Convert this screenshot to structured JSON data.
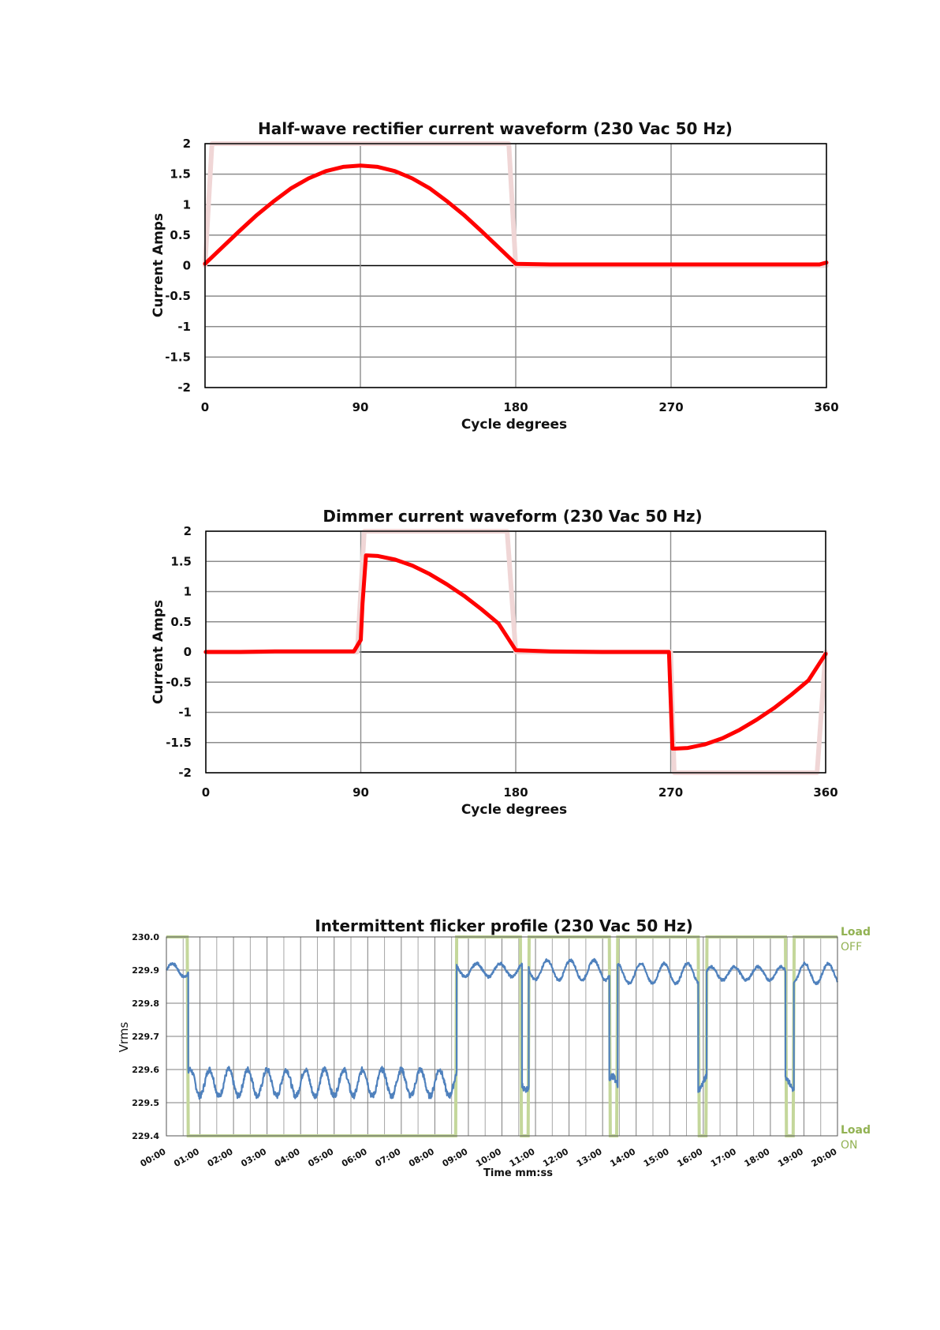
{
  "chart_data": [
    {
      "type": "line",
      "title": "Half-wave rectifier current waveform (230 Vac 50 Hz)",
      "xlabel": "Cycle degrees",
      "ylabel": "Current Amps",
      "xlim": [
        0,
        360
      ],
      "ylim": [
        -2,
        2
      ],
      "xticks": [
        "0",
        "90",
        "180",
        "270",
        "360"
      ],
      "yticks": [
        "2",
        "1.5",
        "1",
        "0.5",
        "0",
        "-0.5",
        "-1",
        "-1.5",
        "-2"
      ],
      "grid": true,
      "series": [
        {
          "color": "#ff0000",
          "x": [
            0,
            10,
            20,
            30,
            40,
            50,
            60,
            70,
            80,
            90,
            100,
            110,
            120,
            130,
            140,
            150,
            160,
            170,
            180,
            200,
            220,
            260,
            300,
            340,
            356,
            360
          ],
          "y": [
            0.03,
            0.3,
            0.57,
            0.83,
            1.06,
            1.27,
            1.43,
            1.55,
            1.62,
            1.64,
            1.62,
            1.55,
            1.43,
            1.27,
            1.06,
            0.83,
            0.57,
            0.3,
            0.03,
            0.02,
            0.02,
            0.02,
            0.02,
            0.02,
            0.02,
            0.05
          ]
        },
        {
          "color": "#f0d6d6",
          "x": [
            0,
            4,
            176,
            180,
            360
          ],
          "y": [
            0,
            2,
            2,
            0,
            0
          ]
        }
      ]
    },
    {
      "type": "line",
      "title": "Dimmer current waveform (230 Vac 50 Hz)",
      "xlabel": "Cycle degrees",
      "ylabel": "Current Amps",
      "xlim": [
        0,
        360
      ],
      "ylim": [
        -2,
        2
      ],
      "xticks": [
        "0",
        "90",
        "180",
        "270",
        "360"
      ],
      "yticks": [
        "2",
        "1.5",
        "1",
        "0.5",
        "0",
        "-0.5",
        "-1",
        "-1.5",
        "-2"
      ],
      "grid": true,
      "series": [
        {
          "color": "#ff0000",
          "x": [
            0,
            20,
            40,
            60,
            80,
            86,
            90,
            91,
            93,
            100,
            110,
            120,
            130,
            140,
            150,
            160,
            170,
            180,
            200,
            230,
            260,
            269,
            270,
            271,
            273,
            280,
            290,
            300,
            310,
            320,
            330,
            340,
            350,
            360
          ],
          "y": [
            0,
            0,
            0.01,
            0.01,
            0.01,
            0.01,
            0.2,
            0.8,
            1.6,
            1.59,
            1.53,
            1.43,
            1.29,
            1.12,
            0.93,
            0.71,
            0.47,
            0.03,
            0.01,
            0,
            0,
            0,
            -0.8,
            -1.6,
            -1.6,
            -1.59,
            -1.53,
            -1.43,
            -1.29,
            -1.12,
            -0.93,
            -0.71,
            -0.47,
            -0.03
          ]
        },
        {
          "color": "#f0d6d6",
          "x": [
            0,
            88,
            92,
            175,
            180,
            270,
            272,
            355,
            360
          ],
          "y": [
            0,
            0,
            2,
            2,
            0,
            0,
            -2,
            -2,
            0
          ]
        }
      ]
    },
    {
      "type": "line",
      "title": "Intermittent flicker profile (230 Vac 50 Hz)",
      "xlabel": "Time mm:ss",
      "ylabel": "Vrms",
      "xlim": [
        0,
        20
      ],
      "ylim": [
        229.4,
        230.0
      ],
      "xticks": [
        "00:00",
        "01:00",
        "02:00",
        "03:00",
        "04:00",
        "05:00",
        "06:00",
        "07:00",
        "08:00",
        "09:00",
        "10:00",
        "11:00",
        "12:00",
        "13:00",
        "14:00",
        "15:00",
        "16:00",
        "17:00",
        "18:00",
        "19:00",
        "20:00"
      ],
      "yticks": [
        "230.0",
        "229.9",
        "229.8",
        "229.7",
        "229.6",
        "229.5",
        "229.4"
      ],
      "grid": true,
      "secondary_labels": {
        "top": [
          "Load",
          "OFF"
        ],
        "bottom": [
          "Load",
          "ON"
        ]
      },
      "series": [
        {
          "color": "#4f81bd",
          "description_points": "Vrms trace",
          "segments": [
            {
              "from": 0.0,
              "to": 0.65,
              "level": 229.9,
              "amp": 0.02
            },
            {
              "from": 0.65,
              "to": 8.65,
              "level": 229.56,
              "amp": 0.04
            },
            {
              "from": 8.65,
              "to": 10.6,
              "level": 229.9,
              "amp": 0.02
            },
            {
              "from": 10.6,
              "to": 10.8,
              "level": 229.56,
              "amp": 0.02
            },
            {
              "from": 10.8,
              "to": 13.2,
              "level": 229.9,
              "amp": 0.03
            },
            {
              "from": 13.2,
              "to": 13.45,
              "level": 229.56,
              "amp": 0.02
            },
            {
              "from": 13.45,
              "to": 15.85,
              "level": 229.89,
              "amp": 0.03
            },
            {
              "from": 15.85,
              "to": 16.1,
              "level": 229.56,
              "amp": 0.02
            },
            {
              "from": 16.1,
              "to": 18.45,
              "level": 229.89,
              "amp": 0.02
            },
            {
              "from": 18.45,
              "to": 18.7,
              "level": 229.56,
              "amp": 0.02
            },
            {
              "from": 18.7,
              "to": 20.0,
              "level": 229.89,
              "amp": 0.03
            }
          ]
        },
        {
          "color": "#c4d79b",
          "x": [
            0,
            0.62,
            0.65,
            8.62,
            8.65,
            10.55,
            10.58,
            10.78,
            10.81,
            13.2,
            13.23,
            13.42,
            13.45,
            15.85,
            15.88,
            16.08,
            16.11,
            18.45,
            18.48,
            18.68,
            18.71,
            20.0
          ],
          "y": [
            230.0,
            230.0,
            229.4,
            229.4,
            230.0,
            230.0,
            229.4,
            229.4,
            230.0,
            230.0,
            229.4,
            229.4,
            230.0,
            230.0,
            229.4,
            229.4,
            230.0,
            230.0,
            229.4,
            229.4,
            230.0,
            230.0
          ]
        }
      ]
    }
  ]
}
